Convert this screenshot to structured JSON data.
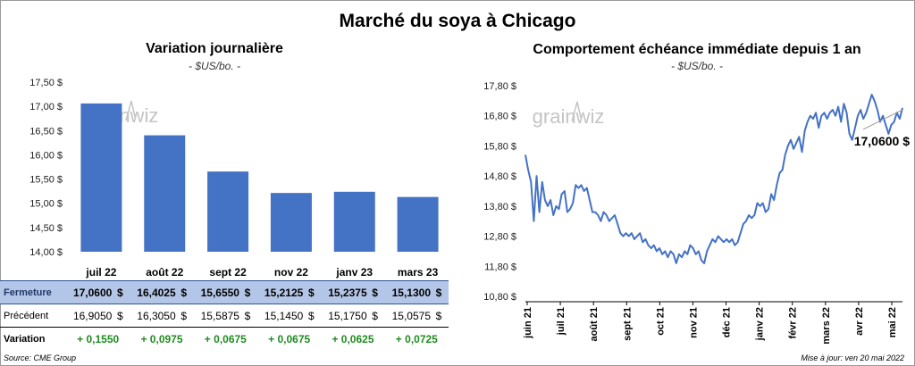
{
  "main_title": "Marché du soya à Chicago",
  "left_chart": {
    "title": "Variation  journalière",
    "subtitle": "- $US/bo. -"
  },
  "right_chart": {
    "title": "Comportement  échéance immédiate depuis 1 an",
    "subtitle": "- $US/bo. -",
    "last_value_label": "17,0600 $",
    "watermark": "grainwiz"
  },
  "chart_data": [
    {
      "type": "bar",
      "categories": [
        "juil 22",
        "août 22",
        "sept 22",
        "nov 22",
        "janv 23",
        "mars 23"
      ],
      "values": [
        17.06,
        16.4025,
        15.655,
        15.2125,
        15.2375,
        15.13
      ],
      "ylim": [
        14.0,
        17.5
      ],
      "yticks": [
        "14,00 $",
        "14,50 $",
        "15,00 $",
        "15,50 $",
        "16,00 $",
        "16,50 $",
        "17,00 $",
        "17,50 $"
      ],
      "bar_color": "#4472c4",
      "watermark": "grainwiz"
    },
    {
      "type": "line",
      "x_labels": [
        "juin 21",
        "juil 21",
        "août 21",
        "sept 21",
        "oct 21",
        "nov 21",
        "déc 21",
        "janv 22",
        "févr 22",
        "mars 22",
        "avr 22",
        "mai 22"
      ],
      "ylim": [
        10.8,
        17.8
      ],
      "yticks": [
        "10,80 $",
        "11,80 $",
        "12,80 $",
        "13,80 $",
        "14,80 $",
        "15,80 $",
        "16,80 $",
        "17,80 $"
      ],
      "line_color": "#4472c4",
      "series": [
        {
          "values": [
            15.5,
            15.0,
            14.6,
            13.3,
            14.8,
            13.6,
            14.6,
            14.0,
            13.8,
            14.0,
            13.5,
            13.8,
            13.7,
            14.2,
            14.3,
            13.6,
            13.7,
            13.9,
            14.5,
            14.4,
            14.5,
            14.3,
            14.4,
            14.0,
            13.6,
            13.6,
            13.5,
            13.3,
            13.6,
            13.5,
            13.3,
            13.4,
            13.5,
            13.2,
            12.9,
            12.8,
            12.9,
            12.8,
            12.9,
            12.7,
            12.8,
            12.9,
            12.6,
            12.7,
            12.5,
            12.4,
            12.5,
            12.3,
            12.4,
            12.2,
            12.3,
            12.1,
            12.3,
            12.2,
            11.9,
            12.2,
            12.1,
            12.3,
            12.2,
            12.5,
            12.4,
            12.2,
            12.3,
            12.0,
            11.9,
            12.3,
            12.5,
            12.7,
            12.6,
            12.8,
            12.7,
            12.6,
            12.7,
            12.6,
            12.7,
            12.5,
            12.6,
            12.9,
            13.2,
            13.3,
            13.5,
            13.4,
            13.5,
            13.9,
            13.8,
            13.9,
            13.6,
            13.7,
            14.2,
            14.0,
            14.5,
            14.9,
            15.0,
            15.5,
            15.8,
            16.0,
            15.7,
            15.9,
            16.1,
            15.6,
            16.3,
            16.6,
            16.8,
            16.7,
            16.9,
            16.4,
            16.8,
            16.9,
            16.7,
            16.9,
            17.0,
            16.8,
            17.1,
            16.6,
            17.2,
            16.9,
            16.2,
            16.0,
            16.4,
            16.8,
            17.0,
            16.7,
            16.9,
            17.2,
            17.5,
            17.3,
            17.0,
            16.6,
            16.8,
            16.5,
            16.2,
            16.5,
            16.6,
            16.9,
            16.7,
            17.06
          ]
        }
      ],
      "watermark": "grainwiz"
    }
  ],
  "table": {
    "rows": [
      {
        "label": "Fermeture",
        "values": [
          "17,0600",
          "16,4025",
          "15,6550",
          "15,2125",
          "15,2375",
          "15,1300"
        ],
        "currency": "$"
      },
      {
        "label": "Précédent",
        "values": [
          "16,9050",
          "16,3050",
          "15,5875",
          "15,1450",
          "15,1750",
          "15,0575"
        ],
        "currency": "$"
      },
      {
        "label": "Variation",
        "values": [
          "+ 0,1550",
          "+ 0,0975",
          "+ 0,0675",
          "+ 0,0675",
          "+ 0,0625",
          "+ 0,0725"
        ]
      }
    ]
  },
  "footer": {
    "source": "Source: CME Group",
    "updated": "Mise à jour: ven 20 mai 2022"
  }
}
